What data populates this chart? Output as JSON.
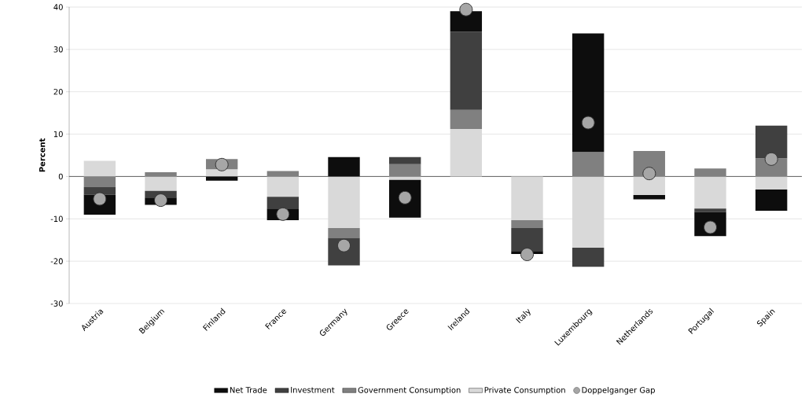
{
  "chart_data": {
    "type": "bar",
    "stacked": true,
    "ylabel": "Percent",
    "categories": [
      "Austria",
      "Belgium",
      "Finland",
      "France",
      "Germany",
      "Greece",
      "Ireland",
      "Italy",
      "Luxembourg",
      "Netherlands",
      "Portugal",
      "Spain"
    ],
    "series": [
      {
        "name": "Private Consumption",
        "color": "#d9d9d9",
        "values": [
          3.7,
          -3.4,
          1.7,
          -4.8,
          -12.2,
          -0.8,
          11.2,
          -10.3,
          -16.8,
          -4.4,
          -7.6,
          -3.1
        ]
      },
      {
        "name": "Government Consumption",
        "color": "#808080",
        "values": [
          -2.5,
          1.0,
          2.4,
          1.3,
          -2.3,
          2.9,
          4.5,
          -1.9,
          5.8,
          6.0,
          1.9,
          4.3
        ]
      },
      {
        "name": "Investment",
        "color": "#404040",
        "values": [
          -1.8,
          -1.6,
          0,
          -2.8,
          -6.5,
          1.7,
          18.5,
          -5.4,
          -4.5,
          0,
          -0.8,
          7.7
        ]
      },
      {
        "name": "Net Trade",
        "color": "#0d0d0d",
        "values": [
          -4.7,
          -1.7,
          -1.0,
          -2.7,
          4.6,
          -8.9,
          4.8,
          -0.7,
          28.0,
          -1.0,
          -5.7,
          -5.0
        ]
      },
      {
        "name": "Doppelganger Gap",
        "type": "scatter",
        "color": "#a6a6a6",
        "marker": "circle",
        "x": [
          "Austria",
          "Belgium",
          "Finland",
          "France",
          "Germany",
          "Greece",
          "Ireland",
          "Italy",
          "Luxembourg",
          "Netherlands",
          "Portugal",
          "Spain"
        ],
        "values": [
          -5.3,
          -5.6,
          2.8,
          -8.9,
          -16.3,
          -5.0,
          39.4,
          -18.4,
          12.7,
          0.7,
          -12.0,
          4.1
        ]
      }
    ],
    "ylim": [
      -30,
      40
    ],
    "yticks": [
      -30,
      -20,
      -10,
      0,
      10,
      20,
      30,
      40
    ],
    "grid": "y",
    "legend": "bottom"
  }
}
